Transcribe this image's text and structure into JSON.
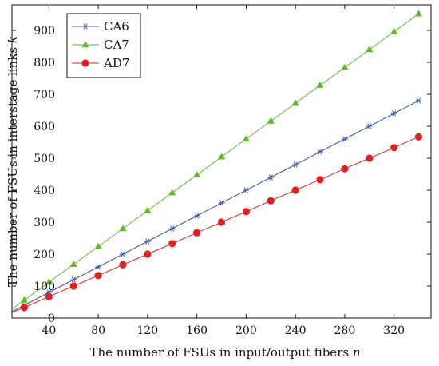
{
  "chart_data": {
    "type": "line",
    "xlabel": "The number of FSUs in input/output fibers n",
    "ylabel": "The number of FSUs in interstage links k",
    "xlim": [
      10,
      350
    ],
    "ylim": [
      0,
      980
    ],
    "xticks": [
      40,
      80,
      120,
      160,
      200,
      240,
      280,
      320
    ],
    "yticks": [
      0,
      100,
      200,
      300,
      400,
      500,
      600,
      700,
      800,
      900
    ],
    "grid": false,
    "legend_position": "top-left",
    "x": [
      20,
      40,
      60,
      80,
      100,
      120,
      140,
      160,
      180,
      200,
      220,
      240,
      260,
      280,
      300,
      320,
      340
    ],
    "series": [
      {
        "name": "CA6",
        "color": "#3d5aa8",
        "marker": "asterisk",
        "values": [
          40,
          80,
          120,
          160,
          200,
          240,
          280,
          320,
          360,
          400,
          440,
          480,
          520,
          560,
          600,
          640,
          680
        ],
        "line_start": [
          10,
          20
        ]
      },
      {
        "name": "CA7",
        "color": "#5cb82e",
        "marker": "triangle",
        "values": [
          56,
          112,
          168,
          224,
          280,
          336,
          392,
          448,
          504,
          560,
          616,
          672,
          728,
          784,
          840,
          896,
          952
        ],
        "line_start": [
          10,
          28
        ]
      },
      {
        "name": "AD7",
        "color": "#e02020",
        "marker": "circle",
        "values": [
          33,
          67,
          100,
          133,
          167,
          200,
          233,
          267,
          300,
          333,
          367,
          400,
          433,
          467,
          500,
          533,
          567
        ],
        "line_start": [
          10,
          17
        ]
      }
    ]
  }
}
